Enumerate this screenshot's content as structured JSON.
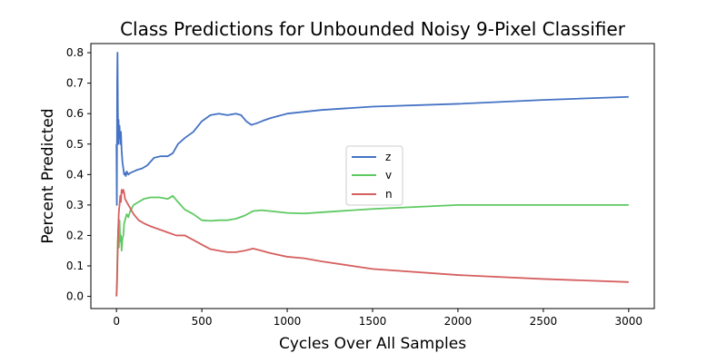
{
  "chart_data": {
    "type": "line",
    "title": "Class Predictions for Unbounded Noisy 9-Pixel Classifier",
    "xlabel": "Cycles Over All Samples",
    "ylabel": "Percent Predicted",
    "xlim": [
      -150,
      3150
    ],
    "ylim": [
      -0.04,
      0.83
    ],
    "xticks": [
      0,
      500,
      1000,
      1500,
      2000,
      2500,
      3000
    ],
    "xtick_labels": [
      "0",
      "500",
      "1000",
      "1500",
      "2000",
      "2500",
      "3000"
    ],
    "yticks": [
      0.0,
      0.1,
      0.2,
      0.3,
      0.4,
      0.5,
      0.6,
      0.7,
      0.8
    ],
    "ytick_labels": [
      "0.0",
      "0.1",
      "0.2",
      "0.3",
      "0.4",
      "0.5",
      "0.6",
      "0.7",
      "0.8"
    ],
    "grid": false,
    "legend_position": "center",
    "series": [
      {
        "name": "z",
        "color": "#4472c4",
        "points": [
          [
            0,
            0.5
          ],
          [
            2,
            0.3
          ],
          [
            4,
            0.7
          ],
          [
            6,
            0.8
          ],
          [
            8,
            0.62
          ],
          [
            10,
            0.5
          ],
          [
            12,
            0.58
          ],
          [
            15,
            0.52
          ],
          [
            18,
            0.56
          ],
          [
            22,
            0.5
          ],
          [
            26,
            0.54
          ],
          [
            30,
            0.48
          ],
          [
            35,
            0.44
          ],
          [
            40,
            0.42
          ],
          [
            45,
            0.4
          ],
          [
            50,
            0.405
          ],
          [
            55,
            0.395
          ],
          [
            60,
            0.41
          ],
          [
            70,
            0.4
          ],
          [
            80,
            0.405
          ],
          [
            100,
            0.41
          ],
          [
            120,
            0.415
          ],
          [
            150,
            0.42
          ],
          [
            180,
            0.43
          ],
          [
            220,
            0.455
          ],
          [
            260,
            0.46
          ],
          [
            300,
            0.46
          ],
          [
            330,
            0.47
          ],
          [
            360,
            0.5
          ],
          [
            400,
            0.52
          ],
          [
            450,
            0.54
          ],
          [
            500,
            0.575
          ],
          [
            550,
            0.595
          ],
          [
            600,
            0.6
          ],
          [
            650,
            0.595
          ],
          [
            700,
            0.6
          ],
          [
            730,
            0.595
          ],
          [
            760,
            0.575
          ],
          [
            790,
            0.563
          ],
          [
            820,
            0.568
          ],
          [
            860,
            0.577
          ],
          [
            900,
            0.585
          ],
          [
            1000,
            0.6
          ],
          [
            1200,
            0.612
          ],
          [
            1500,
            0.623
          ],
          [
            2000,
            0.632
          ],
          [
            2500,
            0.645
          ],
          [
            3000,
            0.655
          ]
        ]
      },
      {
        "name": "v",
        "color": "#5ec962",
        "points": [
          [
            0,
            0.0
          ],
          [
            3,
            0.06
          ],
          [
            6,
            0.15
          ],
          [
            10,
            0.22
          ],
          [
            14,
            0.16
          ],
          [
            18,
            0.25
          ],
          [
            22,
            0.18
          ],
          [
            26,
            0.2
          ],
          [
            30,
            0.15
          ],
          [
            35,
            0.19
          ],
          [
            40,
            0.2
          ],
          [
            45,
            0.24
          ],
          [
            50,
            0.25
          ],
          [
            60,
            0.27
          ],
          [
            70,
            0.26
          ],
          [
            80,
            0.28
          ],
          [
            100,
            0.3
          ],
          [
            130,
            0.31
          ],
          [
            160,
            0.32
          ],
          [
            200,
            0.325
          ],
          [
            250,
            0.325
          ],
          [
            300,
            0.32
          ],
          [
            330,
            0.33
          ],
          [
            360,
            0.31
          ],
          [
            400,
            0.285
          ],
          [
            450,
            0.27
          ],
          [
            500,
            0.25
          ],
          [
            550,
            0.248
          ],
          [
            600,
            0.25
          ],
          [
            650,
            0.25
          ],
          [
            700,
            0.255
          ],
          [
            750,
            0.265
          ],
          [
            800,
            0.28
          ],
          [
            850,
            0.283
          ],
          [
            900,
            0.28
          ],
          [
            1000,
            0.274
          ],
          [
            1100,
            0.272
          ],
          [
            1200,
            0.276
          ],
          [
            1500,
            0.287
          ],
          [
            2000,
            0.3
          ],
          [
            2500,
            0.3
          ],
          [
            3000,
            0.3
          ]
        ]
      },
      {
        "name": "n",
        "color": "#d65f5f",
        "points": [
          [
            0,
            0.0
          ],
          [
            3,
            0.04
          ],
          [
            6,
            0.12
          ],
          [
            10,
            0.22
          ],
          [
            14,
            0.28
          ],
          [
            18,
            0.3
          ],
          [
            22,
            0.33
          ],
          [
            26,
            0.31
          ],
          [
            30,
            0.35
          ],
          [
            35,
            0.34
          ],
          [
            40,
            0.35
          ],
          [
            45,
            0.34
          ],
          [
            50,
            0.32
          ],
          [
            60,
            0.31
          ],
          [
            70,
            0.3
          ],
          [
            80,
            0.29
          ],
          [
            100,
            0.27
          ],
          [
            130,
            0.25
          ],
          [
            160,
            0.24
          ],
          [
            200,
            0.23
          ],
          [
            250,
            0.22
          ],
          [
            300,
            0.21
          ],
          [
            350,
            0.2
          ],
          [
            400,
            0.2
          ],
          [
            450,
            0.185
          ],
          [
            500,
            0.17
          ],
          [
            550,
            0.155
          ],
          [
            600,
            0.15
          ],
          [
            650,
            0.145
          ],
          [
            700,
            0.145
          ],
          [
            750,
            0.15
          ],
          [
            800,
            0.157
          ],
          [
            850,
            0.15
          ],
          [
            900,
            0.142
          ],
          [
            1000,
            0.13
          ],
          [
            1100,
            0.125
          ],
          [
            1200,
            0.115
          ],
          [
            1500,
            0.09
          ],
          [
            2000,
            0.07
          ],
          [
            2500,
            0.057
          ],
          [
            3000,
            0.047
          ]
        ]
      }
    ]
  }
}
